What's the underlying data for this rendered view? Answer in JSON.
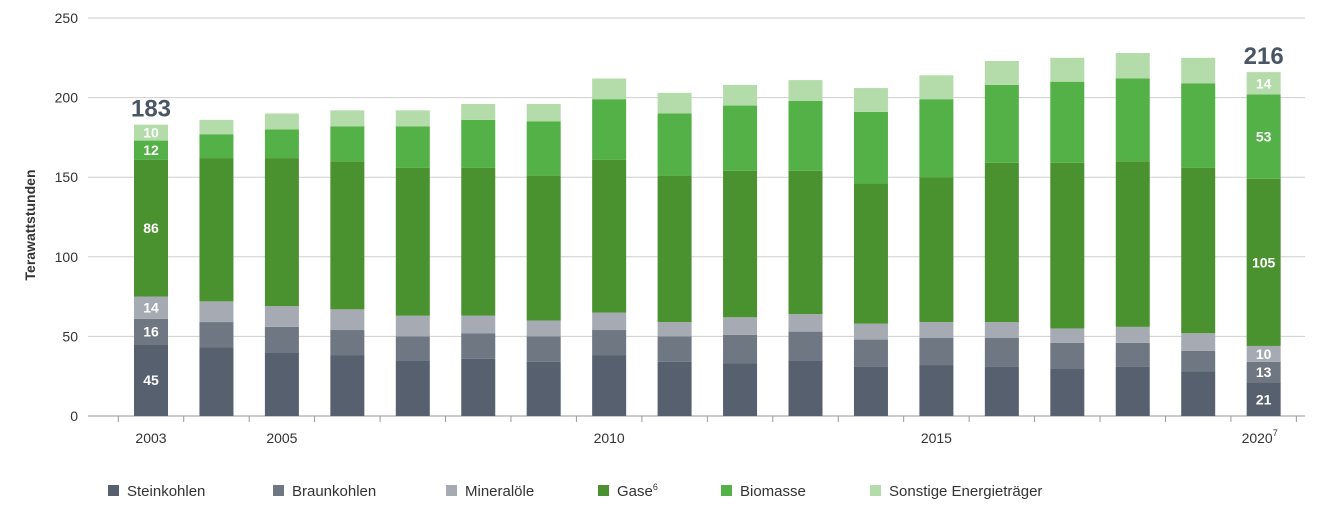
{
  "chart_data": {
    "type": "bar",
    "stacked": true,
    "ylabel": "Terawattstunden",
    "xlabel": "",
    "ylim": [
      0,
      250
    ],
    "yticks": [
      0,
      50,
      100,
      150,
      200,
      250
    ],
    "grid": true,
    "legend_position": "bottom",
    "categories": [
      "2003",
      "2004",
      "2005",
      "2006",
      "2007",
      "2008",
      "2009",
      "2010",
      "2011",
      "2012",
      "2013",
      "2014",
      "2015",
      "2016",
      "2017",
      "2018",
      "2019",
      "2020"
    ],
    "xtick_labels": [
      {
        "index": 0,
        "text": "2003",
        "sup": ""
      },
      {
        "index": 2,
        "text": "2005",
        "sup": ""
      },
      {
        "index": 7,
        "text": "2010",
        "sup": ""
      },
      {
        "index": 12,
        "text": "2015",
        "sup": ""
      },
      {
        "index": 17,
        "text": "2020",
        "sup": "7"
      }
    ],
    "series": [
      {
        "name": "Steinkohlen",
        "sup": "",
        "color": "#56606e",
        "values": [
          45,
          43,
          40,
          38,
          35,
          36,
          34,
          38,
          34,
          33,
          35,
          31,
          32,
          31,
          30,
          31,
          28,
          21
        ]
      },
      {
        "name": "Braunkohlen",
        "sup": "",
        "color": "#6e7782",
        "values": [
          16,
          16,
          16,
          16,
          15,
          16,
          16,
          16,
          16,
          18,
          18,
          17,
          17,
          18,
          16,
          15,
          13,
          13
        ]
      },
      {
        "name": "Mineralöle",
        "sup": "",
        "color": "#a6abb3",
        "values": [
          14,
          13,
          13,
          13,
          13,
          11,
          10,
          11,
          9,
          11,
          11,
          10,
          10,
          10,
          9,
          10,
          11,
          10
        ]
      },
      {
        "name": "Gase",
        "sup": "6",
        "color": "#4a922f",
        "values": [
          86,
          90,
          93,
          93,
          93,
          93,
          91,
          96,
          92,
          92,
          90,
          88,
          91,
          100,
          104,
          104,
          104,
          105
        ]
      },
      {
        "name": "Biomasse",
        "sup": "",
        "color": "#54b148",
        "values": [
          12,
          15,
          18,
          22,
          26,
          30,
          34,
          38,
          39,
          41,
          44,
          45,
          49,
          49,
          51,
          52,
          53,
          53
        ]
      },
      {
        "name": "Sonstige Energieträger",
        "sup": "",
        "color": "#b3dcaa",
        "values": [
          10,
          9,
          10,
          10,
          10,
          10,
          11,
          13,
          13,
          13,
          13,
          15,
          15,
          15,
          15,
          16,
          16,
          14
        ]
      }
    ],
    "annotations": {
      "totals": [
        {
          "index": 0,
          "text": "183"
        },
        {
          "index": 17,
          "text": "216"
        }
      ],
      "segment_labels": [
        {
          "index": 0,
          "series": 0,
          "text": "45"
        },
        {
          "index": 0,
          "series": 1,
          "text": "16"
        },
        {
          "index": 0,
          "series": 2,
          "text": "14"
        },
        {
          "index": 0,
          "series": 3,
          "text": "86"
        },
        {
          "index": 0,
          "series": 4,
          "text": "12"
        },
        {
          "index": 0,
          "series": 5,
          "text": "10"
        },
        {
          "index": 17,
          "series": 0,
          "text": "21"
        },
        {
          "index": 17,
          "series": 1,
          "text": "13"
        },
        {
          "index": 17,
          "series": 2,
          "text": "10"
        },
        {
          "index": 17,
          "series": 3,
          "text": "105"
        },
        {
          "index": 17,
          "series": 4,
          "text": "53"
        },
        {
          "index": 17,
          "series": 5,
          "text": "14"
        }
      ]
    }
  }
}
